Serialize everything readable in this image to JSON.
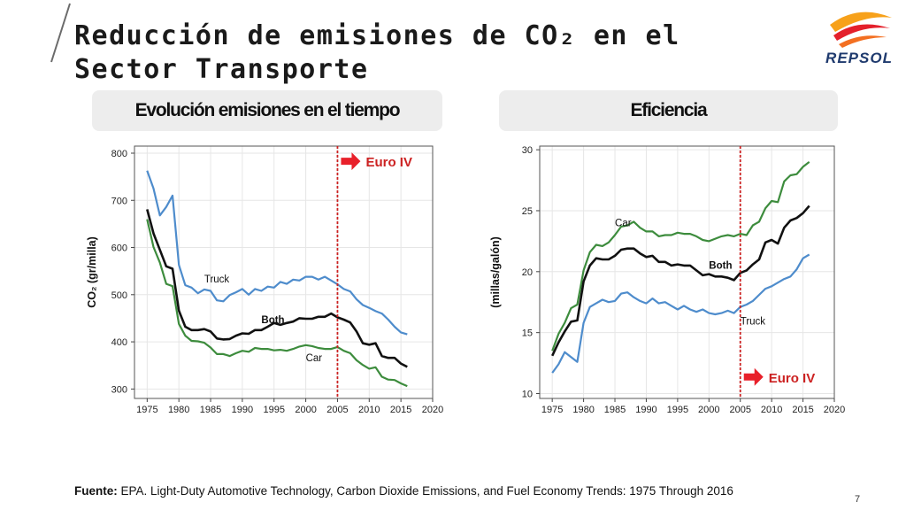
{
  "slide": {
    "title": "Reducción de emisiones de CO₂ en el Sector Transporte",
    "page_number": "7",
    "logo_text": "REPSOL"
  },
  "tabs": [
    {
      "label": "Evolución emisiones en el tiempo"
    },
    {
      "label": "Eficiencia"
    }
  ],
  "source": {
    "prefix": "Fuente:",
    "text": " EPA. Light-Duty Automotive Technology, Carbon Dioxide Emissions, and Fuel Economy Trends: 1975 Through 2016"
  },
  "colors": {
    "truck": "#4e8ccc",
    "both": "#111111",
    "car": "#3d8c3d",
    "marker": "#cc2222",
    "arrow": "#e8202a"
  },
  "chart_data": [
    {
      "type": "line",
      "ylabel": "CO₂ (gr/milla)",
      "xlim": [
        1973,
        2020
      ],
      "ylim": [
        280,
        815
      ],
      "x_ticks": [
        1975,
        1980,
        1985,
        1990,
        1995,
        2000,
        2005,
        2010,
        2015,
        2020
      ],
      "y_ticks": [
        300,
        400,
        500,
        600,
        700,
        800
      ],
      "grid": true,
      "marker": {
        "x": 2005,
        "label": "Euro IV"
      },
      "x": [
        1975,
        1976,
        1977,
        1978,
        1979,
        1980,
        1981,
        1982,
        1983,
        1984,
        1985,
        1986,
        1987,
        1988,
        1989,
        1990,
        1991,
        1992,
        1993,
        1994,
        1995,
        1996,
        1997,
        1998,
        1999,
        2000,
        2001,
        2002,
        2003,
        2004,
        2005,
        2006,
        2007,
        2008,
        2009,
        2010,
        2011,
        2012,
        2013,
        2014,
        2015,
        2016
      ],
      "series": [
        {
          "name": "Truck",
          "key": "truck",
          "values": [
            763,
            725,
            668,
            686,
            710,
            563,
            520,
            515,
            503,
            511,
            508,
            488,
            486,
            499,
            505,
            512,
            500,
            512,
            508,
            517,
            515,
            527,
            523,
            532,
            530,
            538,
            538,
            532,
            538,
            530,
            522,
            512,
            507,
            490,
            478,
            472,
            465,
            460,
            447,
            432,
            420,
            416
          ]
        },
        {
          "name": "Both",
          "key": "both",
          "values": [
            681,
            630,
            595,
            560,
            555,
            466,
            432,
            425,
            425,
            427,
            422,
            407,
            405,
            406,
            413,
            418,
            417,
            425,
            425,
            432,
            440,
            436,
            440,
            443,
            450,
            449,
            449,
            453,
            453,
            460,
            452,
            447,
            441,
            422,
            397,
            394,
            397,
            370,
            366,
            366,
            354,
            347
          ]
        },
        {
          "name": "Car",
          "key": "car",
          "values": [
            660,
            601,
            568,
            523,
            518,
            438,
            413,
            402,
            401,
            398,
            388,
            374,
            374,
            370,
            376,
            381,
            379,
            387,
            385,
            385,
            382,
            383,
            381,
            385,
            390,
            393,
            391,
            387,
            385,
            385,
            389,
            381,
            376,
            361,
            351,
            343,
            346,
            326,
            320,
            319,
            312,
            306
          ]
        }
      ]
    },
    {
      "type": "line",
      "ylabel": "(millas/galón)",
      "xlim": [
        1973,
        2020
      ],
      "ylim": [
        9.6,
        30.3
      ],
      "x_ticks": [
        1975,
        1980,
        1985,
        1990,
        1995,
        2000,
        2005,
        2010,
        2015,
        2020
      ],
      "y_ticks": [
        10,
        15,
        20,
        25,
        30
      ],
      "grid": true,
      "marker": {
        "x": 2005,
        "label": "Euro IV"
      },
      "x": [
        1975,
        1976,
        1977,
        1978,
        1979,
        1980,
        1981,
        1982,
        1983,
        1984,
        1985,
        1986,
        1987,
        1988,
        1989,
        1990,
        1991,
        1992,
        1993,
        1994,
        1995,
        1996,
        1997,
        1998,
        1999,
        2000,
        2001,
        2002,
        2003,
        2004,
        2005,
        2006,
        2007,
        2008,
        2009,
        2010,
        2011,
        2012,
        2013,
        2014,
        2015,
        2016
      ],
      "series": [
        {
          "name": "Car",
          "key": "car",
          "values": [
            13.5,
            14.9,
            15.8,
            17.0,
            17.3,
            20.1,
            21.6,
            22.2,
            22.1,
            22.4,
            23.0,
            23.7,
            23.8,
            24.1,
            23.6,
            23.3,
            23.3,
            22.9,
            23.0,
            23.0,
            23.2,
            23.1,
            23.1,
            22.9,
            22.6,
            22.5,
            22.7,
            22.9,
            23.0,
            22.9,
            23.1,
            23.0,
            23.8,
            24.1,
            25.2,
            25.8,
            25.7,
            27.4,
            27.9,
            28.0,
            28.6,
            29.0
          ]
        },
        {
          "name": "Both",
          "key": "both",
          "values": [
            13.1,
            14.2,
            15.1,
            15.9,
            16.0,
            19.2,
            20.5,
            21.1,
            21.0,
            21.0,
            21.3,
            21.8,
            21.9,
            21.9,
            21.5,
            21.2,
            21.3,
            20.8,
            20.8,
            20.5,
            20.6,
            20.5,
            20.5,
            20.1,
            19.7,
            19.8,
            19.6,
            19.6,
            19.5,
            19.3,
            19.9,
            20.1,
            20.6,
            21.0,
            22.4,
            22.6,
            22.3,
            23.6,
            24.2,
            24.4,
            24.8,
            25.4
          ]
        },
        {
          "name": "Truck",
          "key": "truck",
          "values": [
            11.7,
            12.4,
            13.4,
            13.0,
            12.6,
            15.8,
            17.1,
            17.4,
            17.7,
            17.5,
            17.6,
            18.2,
            18.3,
            17.9,
            17.6,
            17.4,
            17.8,
            17.4,
            17.5,
            17.2,
            16.9,
            17.2,
            16.9,
            16.7,
            16.9,
            16.6,
            16.5,
            16.6,
            16.8,
            16.6,
            17.1,
            17.3,
            17.6,
            18.1,
            18.6,
            18.8,
            19.1,
            19.4,
            19.6,
            20.2,
            21.1,
            21.4
          ]
        }
      ]
    }
  ]
}
